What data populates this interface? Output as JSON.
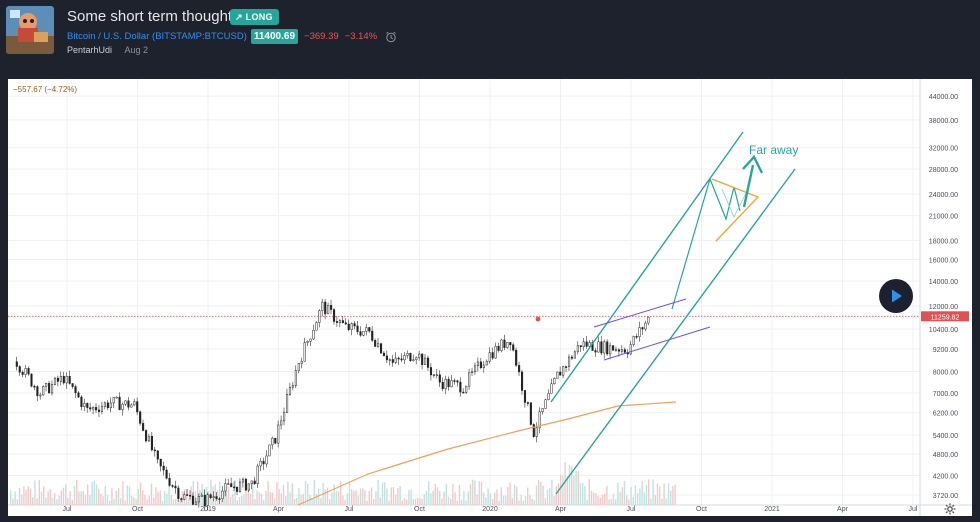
{
  "header": {
    "title": "Some short term thoughts",
    "badge": "↗ LONG",
    "symbol_name": "Bitcoin / U.S. Dollar",
    "symbol_exchange": "BITSTAMP:BTCUSD",
    "price": "11400.69",
    "change": "−369.39",
    "change_pct": "−3.14%",
    "author": "PentarhUdi",
    "date": "Aug 2"
  },
  "chart": {
    "ohlc_text": "−557.67 (−4.72%)",
    "current_price_label": "11259.82",
    "annotation": "Far away",
    "y_ticks": [
      "44000.00",
      "38000.00",
      "32000.00",
      "28000.00",
      "24000.00",
      "21000.00",
      "18000.00",
      "16000.00",
      "14000.00",
      "12000.00",
      "10400.00",
      "9200.00",
      "8000.00",
      "7000.00",
      "6200.00",
      "5400.00",
      "4800.00",
      "4200.00",
      "3720.00"
    ],
    "x_ticks": [
      "Jul",
      "Oct",
      "2019",
      "Apr",
      "Jul",
      "Oct",
      "2020",
      "Apr",
      "Jul",
      "Oct",
      "2021",
      "Apr",
      "Jul"
    ],
    "colors": {
      "teal": "#26a69a",
      "orange": "#f7a22e",
      "purple": "#6c4cf5",
      "red_dash": "#e05252",
      "ma": "#f0a05a"
    }
  },
  "chart_data": {
    "type": "line",
    "title": "Some short term thoughts",
    "xlabel": "",
    "ylabel": "",
    "yscale": "log",
    "ylim": [
      3500,
      46000
    ],
    "x": [
      "2018-05",
      "2018-06",
      "2018-07",
      "2018-08",
      "2018-09",
      "2018-10",
      "2018-11",
      "2018-12",
      "2019-01",
      "2019-02",
      "2019-03",
      "2019-04",
      "2019-05",
      "2019-06",
      "2019-07",
      "2019-08",
      "2019-09",
      "2019-10",
      "2019-11",
      "2019-12",
      "2020-01",
      "2020-02",
      "2020-03",
      "2020-04",
      "2020-05",
      "2020-06",
      "2020-07",
      "2020-08"
    ],
    "series": [
      {
        "values": [
          8500,
          7000,
          7700,
          6300,
          6600,
          6500,
          4500,
          3700,
          3600,
          3900,
          4000,
          5300,
          8500,
          12000,
          10500,
          10200,
          8400,
          9000,
          7500,
          7300,
          8800,
          9800,
          5500,
          7800,
          9500,
          9300,
          9200,
          11400
        ]
      }
    ]
  }
}
